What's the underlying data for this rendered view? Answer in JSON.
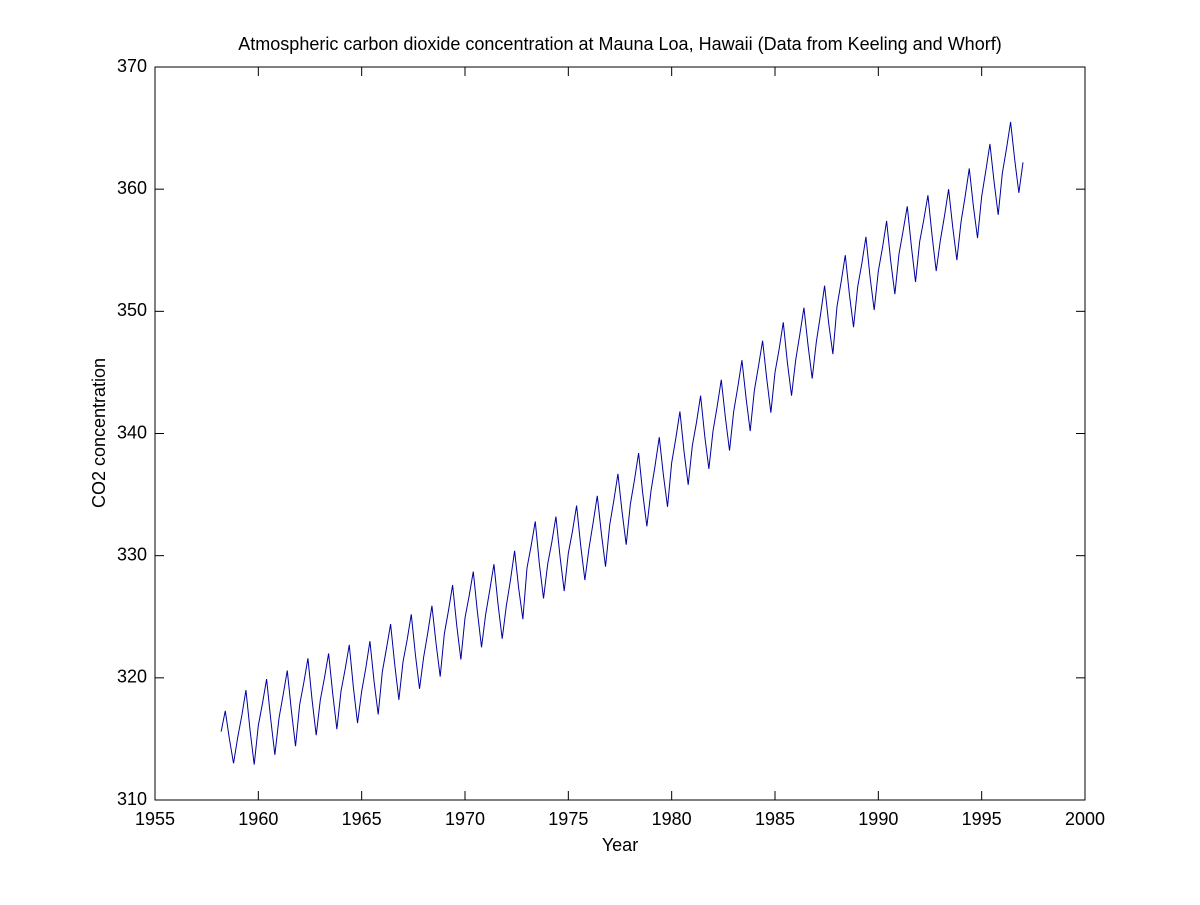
{
  "chart_data": {
    "type": "line",
    "title": "Atmospheric carbon dioxide concentration at Mauna Loa, Hawaii (Data from Keeling and Whorf)",
    "xlabel": "Year",
    "ylabel": "CO2 concentration",
    "xlim": [
      1955,
      2000
    ],
    "xticks": [
      1955,
      1960,
      1965,
      1970,
      1975,
      1980,
      1985,
      1990,
      1995,
      2000
    ],
    "ylim": [
      310,
      370
    ],
    "yticks": [
      310,
      320,
      330,
      340,
      350,
      360,
      370
    ],
    "grid": false,
    "x": [
      1958.2,
      1958.4,
      1958.6,
      1958.8,
      1959.0,
      1959.2,
      1959.4,
      1959.6,
      1959.8,
      1960.0,
      1960.2,
      1960.4,
      1960.6,
      1960.8,
      1961.0,
      1961.2,
      1961.4,
      1961.6,
      1961.8,
      1962.0,
      1962.2,
      1962.4,
      1962.6,
      1962.8,
      1963.0,
      1963.2,
      1963.4,
      1963.6,
      1963.8,
      1964.0,
      1964.2,
      1964.4,
      1964.6,
      1964.8,
      1965.0,
      1965.2,
      1965.4,
      1965.6,
      1965.8,
      1966.0,
      1966.2,
      1966.4,
      1966.6,
      1966.8,
      1967.0,
      1967.2,
      1967.4,
      1967.6,
      1967.8,
      1968.0,
      1968.2,
      1968.4,
      1968.6,
      1968.8,
      1969.0,
      1969.2,
      1969.4,
      1969.6,
      1969.8,
      1970.0,
      1970.2,
      1970.4,
      1970.6,
      1970.8,
      1971.0,
      1971.2,
      1971.4,
      1971.6,
      1971.8,
      1972.0,
      1972.2,
      1972.4,
      1972.6,
      1972.8,
      1973.0,
      1973.2,
      1973.4,
      1973.6,
      1973.8,
      1974.0,
      1974.2,
      1974.4,
      1974.6,
      1974.8,
      1975.0,
      1975.2,
      1975.4,
      1975.6,
      1975.8,
      1976.0,
      1976.2,
      1976.4,
      1976.6,
      1976.8,
      1977.0,
      1977.2,
      1977.4,
      1977.6,
      1977.8,
      1978.0,
      1978.2,
      1978.4,
      1978.6,
      1978.8,
      1979.0,
      1979.2,
      1979.4,
      1979.6,
      1979.8,
      1980.0,
      1980.2,
      1980.4,
      1980.6,
      1980.8,
      1981.0,
      1981.2,
      1981.4,
      1981.6,
      1981.8,
      1982.0,
      1982.2,
      1982.4,
      1982.6,
      1982.8,
      1983.0,
      1983.2,
      1983.4,
      1983.6,
      1983.8,
      1984.0,
      1984.2,
      1984.4,
      1984.6,
      1984.8,
      1985.0,
      1985.2,
      1985.4,
      1985.6,
      1985.8,
      1986.0,
      1986.2,
      1986.4,
      1986.6,
      1986.8,
      1987.0,
      1987.2,
      1987.4,
      1987.6,
      1987.8,
      1988.0,
      1988.2,
      1988.4,
      1988.6,
      1988.8,
      1989.0,
      1989.2,
      1989.4,
      1989.6,
      1989.8,
      1990.0,
      1990.2,
      1990.4,
      1990.6,
      1990.8,
      1991.0,
      1991.2,
      1991.4,
      1991.6,
      1991.8,
      1992.0,
      1992.2,
      1992.4,
      1992.6,
      1992.8,
      1993.0,
      1993.2,
      1993.4,
      1993.6,
      1993.8,
      1994.0,
      1994.2,
      1994.4,
      1994.6,
      1994.8,
      1995.0,
      1995.2,
      1995.4,
      1995.6,
      1995.8,
      1996.0,
      1996.2,
      1996.4,
      1996.6,
      1996.8,
      1997.0
    ],
    "series": [
      {
        "name": "CO2",
        "color": "#0000a0",
        "values": [
          315.6,
          317.3,
          315.0,
          313.0,
          315.1,
          316.9,
          319.0,
          315.7,
          312.9,
          316.1,
          317.9,
          319.9,
          316.6,
          313.7,
          316.7,
          318.6,
          320.6,
          317.3,
          314.4,
          317.8,
          319.6,
          321.6,
          318.2,
          315.3,
          318.2,
          320.0,
          322.0,
          318.7,
          315.8,
          318.9,
          320.7,
          322.7,
          319.2,
          316.3,
          318.9,
          320.8,
          323.0,
          319.7,
          317.0,
          320.5,
          322.4,
          324.4,
          321.1,
          318.2,
          321.3,
          323.1,
          325.2,
          321.9,
          319.1,
          321.7,
          323.7,
          325.9,
          322.8,
          320.1,
          323.6,
          325.5,
          327.6,
          324.3,
          321.5,
          324.9,
          326.7,
          328.7,
          325.4,
          322.5,
          325.2,
          327.2,
          329.3,
          326.0,
          323.2,
          325.9,
          328.0,
          330.4,
          327.3,
          324.8,
          329.0,
          330.8,
          332.8,
          329.3,
          326.5,
          329.3,
          331.1,
          333.2,
          329.9,
          327.1,
          330.2,
          332.0,
          334.1,
          330.8,
          328.0,
          330.6,
          332.7,
          334.9,
          331.8,
          329.1,
          332.5,
          334.5,
          336.7,
          333.6,
          330.9,
          334.2,
          336.2,
          338.4,
          335.1,
          332.4,
          335.3,
          337.4,
          339.7,
          336.6,
          334.0,
          337.6,
          339.6,
          341.8,
          338.5,
          335.8,
          339.0,
          340.9,
          343.1,
          339.8,
          337.1,
          340.2,
          342.2,
          344.4,
          341.3,
          338.6,
          341.8,
          343.8,
          346.0,
          342.9,
          340.2,
          343.5,
          345.5,
          347.6,
          344.5,
          341.7,
          345.0,
          346.9,
          349.1,
          345.8,
          343.1,
          346.0,
          348.1,
          350.3,
          347.2,
          344.5,
          347.5,
          349.7,
          352.1,
          349.0,
          346.5,
          350.4,
          352.4,
          354.6,
          351.4,
          348.7,
          352.0,
          353.9,
          356.1,
          352.8,
          350.1,
          353.3,
          355.2,
          357.4,
          354.1,
          351.4,
          354.7,
          356.6,
          358.6,
          355.3,
          352.4,
          355.7,
          357.5,
          359.5,
          356.2,
          353.3,
          355.8,
          357.8,
          360.0,
          356.9,
          354.2,
          357.3,
          359.4,
          361.7,
          358.6,
          356.0,
          359.4,
          361.5,
          363.7,
          360.6,
          357.9,
          361.3,
          363.3,
          365.5,
          362.4,
          359.7,
          362.2
        ]
      }
    ]
  }
}
